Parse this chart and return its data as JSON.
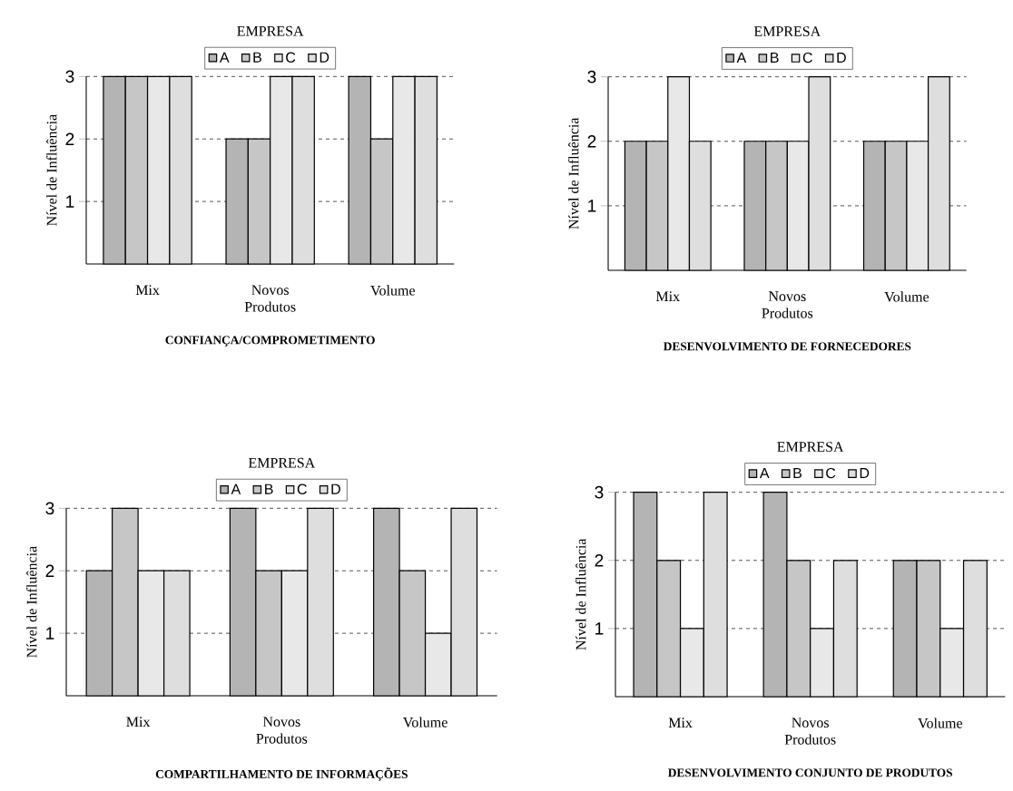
{
  "chart_data": [
    {
      "type": "bar",
      "title": "CONFIANÇA/COMPROMETIMENTO",
      "ylabel": "Nível de Influência",
      "legend_title": "EMPRESA",
      "categories": [
        "Mix",
        "Novos Produtos",
        "Volume"
      ],
      "series": [
        {
          "name": "A",
          "color": "#b4b4b4",
          "values": [
            3,
            2,
            3
          ]
        },
        {
          "name": "B",
          "color": "#c6c6c6",
          "values": [
            3,
            2,
            2
          ]
        },
        {
          "name": "C",
          "color": "#e8e8e8",
          "values": [
            3,
            3,
            3
          ]
        },
        {
          "name": "D",
          "color": "#dedede",
          "values": [
            3,
            3,
            3
          ]
        }
      ],
      "ylim": [
        0,
        3
      ],
      "yticks": [
        1,
        2,
        3
      ],
      "grid": "y",
      "legend": "top"
    },
    {
      "type": "bar",
      "title": "DESENVOLVIMENTO DE FORNECEDORES",
      "ylabel": "Nível de Influência",
      "legend_title": "EMPRESA",
      "categories": [
        "Mix",
        "Novos Produtos",
        "Volume"
      ],
      "series": [
        {
          "name": "A",
          "color": "#b4b4b4",
          "values": [
            2,
            2,
            2
          ]
        },
        {
          "name": "B",
          "color": "#c6c6c6",
          "values": [
            2,
            2,
            2
          ]
        },
        {
          "name": "C",
          "color": "#e8e8e8",
          "values": [
            3,
            2,
            2
          ]
        },
        {
          "name": "D",
          "color": "#dedede",
          "values": [
            2,
            3,
            3
          ]
        }
      ],
      "ylim": [
        0,
        3
      ],
      "yticks": [
        1,
        2,
        3
      ],
      "grid": "y",
      "legend": "top"
    },
    {
      "type": "bar",
      "title": "COMPARTILHAMENTO DE INFORMAÇÕES",
      "ylabel": "Nível de Influência",
      "legend_title": "EMPRESA",
      "categories": [
        "Mix",
        "Novos Produtos",
        "Volume"
      ],
      "series": [
        {
          "name": "A",
          "color": "#b4b4b4",
          "values": [
            2,
            3,
            3
          ]
        },
        {
          "name": "B",
          "color": "#c6c6c6",
          "values": [
            3,
            2,
            2
          ]
        },
        {
          "name": "C",
          "color": "#e8e8e8",
          "values": [
            2,
            2,
            1
          ]
        },
        {
          "name": "D",
          "color": "#dedede",
          "values": [
            2,
            3,
            3
          ]
        }
      ],
      "ylim": [
        0,
        3
      ],
      "yticks": [
        1,
        2,
        3
      ],
      "grid": "y",
      "legend": "top"
    },
    {
      "type": "bar",
      "title": "DESENVOLVIMENTO CONJUNTO DE PRODUTOS",
      "ylabel": "Nível de Influência",
      "legend_title": "EMPRESA",
      "categories": [
        "Mix",
        "Novos Produtos",
        "Volume"
      ],
      "series": [
        {
          "name": "A",
          "color": "#b4b4b4",
          "values": [
            3,
            3,
            2
          ]
        },
        {
          "name": "B",
          "color": "#c6c6c6",
          "values": [
            2,
            2,
            2
          ]
        },
        {
          "name": "C",
          "color": "#e8e8e8",
          "values": [
            1,
            1,
            1
          ]
        },
        {
          "name": "D",
          "color": "#dedede",
          "values": [
            3,
            2,
            2
          ]
        }
      ],
      "ylim": [
        0,
        3
      ],
      "yticks": [
        1,
        2,
        3
      ],
      "grid": "y",
      "legend": "top"
    }
  ]
}
